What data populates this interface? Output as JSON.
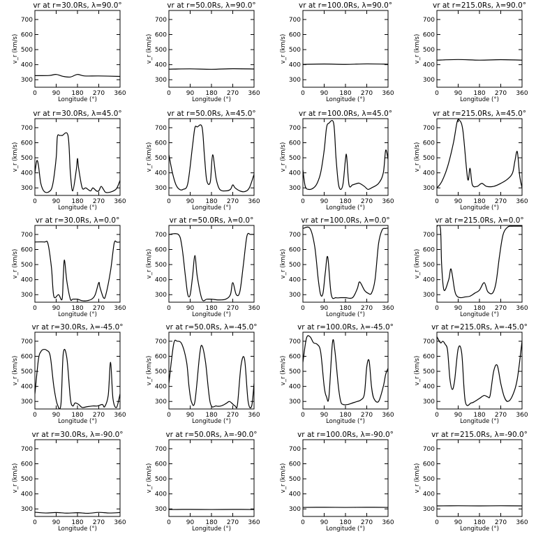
{
  "chart_data": {
    "type": "line",
    "xlabel": "Longitude (°)",
    "ylabel": "v_r (km/s)",
    "xlim": [
      0,
      360
    ],
    "ylim": [
      250,
      760
    ],
    "xticks": [
      "0",
      "90",
      "180",
      "270",
      "360"
    ],
    "yticks": [
      "300",
      "400",
      "500",
      "600",
      "700"
    ],
    "panels": [
      {
        "title": "vr at r=30.0Rs, λ=90.0°",
        "x": [
          0,
          60,
          90,
          120,
          150,
          180,
          210,
          270,
          360
        ],
        "y": [
          327,
          328,
          335,
          322,
          318,
          335,
          325,
          325,
          322
        ]
      },
      {
        "title": "vr at r=50.0Rs, λ=90.0°",
        "x": [
          0,
          90,
          180,
          270,
          360
        ],
        "y": [
          370,
          372,
          369,
          373,
          371
        ]
      },
      {
        "title": "vr at r=100.0Rs, λ=90.0°",
        "x": [
          0,
          90,
          180,
          270,
          360
        ],
        "y": [
          402,
          404,
          402,
          405,
          403
        ]
      },
      {
        "title": "vr at r=215.0Rs, λ=90.0°",
        "x": [
          0,
          90,
          180,
          270,
          360
        ],
        "y": [
          430,
          434,
          430,
          433,
          430
        ]
      },
      {
        "title": "vr at r=30.0Rs, λ=45.0°",
        "x": [
          0,
          8,
          15,
          25,
          40,
          60,
          75,
          90,
          95,
          105,
          115,
          140,
          150,
          160,
          175,
          180,
          185,
          200,
          215,
          235,
          245,
          260,
          270,
          280,
          290,
          300,
          325,
          345,
          360
        ],
        "y": [
          400,
          480,
          450,
          330,
          275,
          275,
          320,
          500,
          640,
          648,
          648,
          648,
          400,
          280,
          420,
          495,
          430,
          300,
          300,
          280,
          300,
          280,
          280,
          310,
          290,
          270,
          275,
          295,
          350
        ]
      },
      {
        "title": "vr at r=50.0Rs, λ=45.0°",
        "x": [
          0,
          15,
          30,
          45,
          60,
          80,
          100,
          110,
          120,
          140,
          150,
          160,
          175,
          185,
          200,
          215,
          240,
          260,
          270,
          280,
          300,
          320,
          340,
          360
        ],
        "y": [
          520,
          400,
          320,
          290,
          290,
          330,
          580,
          700,
          705,
          705,
          520,
          350,
          340,
          520,
          360,
          290,
          280,
          290,
          320,
          300,
          280,
          275,
          300,
          390
        ]
      },
      {
        "title": "vr at r=100.0Rs, λ=45.0°",
        "x": [
          0,
          10,
          25,
          45,
          60,
          75,
          90,
          100,
          110,
          130,
          140,
          150,
          160,
          170,
          180,
          185,
          195,
          210,
          230,
          240,
          260,
          275,
          290,
          320,
          340,
          350,
          360
        ],
        "y": [
          420,
          310,
          290,
          300,
          330,
          400,
          550,
          700,
          730,
          730,
          500,
          330,
          290,
          330,
          490,
          510,
          320,
          320,
          330,
          330,
          310,
          290,
          300,
          330,
          400,
          550,
          490
        ]
      },
      {
        "title": "vr at r=215.0Rs, λ=45.0°",
        "x": [
          0,
          20,
          45,
          70,
          85,
          95,
          110,
          130,
          140,
          150,
          170,
          190,
          210,
          240,
          270,
          300,
          320,
          330,
          340,
          350,
          360
        ],
        "y": [
          300,
          340,
          440,
          600,
          735,
          750,
          680,
          360,
          430,
          320,
          310,
          330,
          310,
          310,
          330,
          360,
          400,
          480,
          540,
          380,
          300
        ]
      },
      {
        "title": "vr at r=30.0Rs, λ=0.0°",
        "x": [
          0,
          40,
          55,
          70,
          80,
          100,
          115,
          120,
          125,
          135,
          150,
          160,
          180,
          200,
          220,
          240,
          255,
          270,
          275,
          290,
          300,
          320,
          335,
          345,
          350,
          360
        ],
        "y": [
          650,
          650,
          640,
          480,
          290,
          300,
          270,
          420,
          530,
          390,
          270,
          270,
          270,
          260,
          260,
          270,
          300,
          380,
          350,
          280,
          300,
          460,
          640,
          650,
          648,
          650
        ]
      },
      {
        "title": "vr at r=50.0Rs, λ=0.0°",
        "x": [
          0,
          40,
          55,
          70,
          80,
          90,
          100,
          110,
          120,
          140,
          160,
          180,
          210,
          240,
          260,
          270,
          285,
          300,
          315,
          330,
          345,
          360
        ],
        "y": [
          700,
          700,
          620,
          420,
          300,
          300,
          420,
          560,
          420,
          270,
          270,
          270,
          265,
          270,
          300,
          380,
          300,
          320,
          500,
          690,
          700,
          700
        ]
      },
      {
        "title": "vr at r=100.0Rs, λ=0.0°",
        "x": [
          0,
          30,
          50,
          65,
          75,
          85,
          95,
          105,
          120,
          140,
          160,
          180,
          210,
          230,
          240,
          260,
          275,
          290,
          305,
          320,
          335,
          350,
          360
        ],
        "y": [
          740,
          740,
          620,
          400,
          300,
          310,
          450,
          550,
          300,
          280,
          280,
          280,
          280,
          340,
          385,
          330,
          310,
          310,
          400,
          640,
          730,
          740,
          742
        ]
      },
      {
        "title": "vr at r=215.0Rs, λ=0.0°",
        "x": [
          0,
          15,
          20,
          30,
          50,
          60,
          75,
          85,
          100,
          120,
          140,
          160,
          180,
          200,
          215,
          235,
          250,
          265,
          280,
          300,
          320,
          340,
          360
        ],
        "y": [
          755,
          740,
          500,
          330,
          400,
          470,
          330,
          290,
          280,
          285,
          290,
          310,
          330,
          380,
          320,
          310,
          380,
          560,
          700,
          750,
          755,
          755,
          755
        ]
      },
      {
        "title": "vr at r=30.0Rs, λ=-45.0°",
        "x": [
          0,
          15,
          25,
          35,
          50,
          65,
          80,
          95,
          110,
          120,
          135,
          150,
          160,
          170,
          185,
          200,
          220,
          245,
          265,
          285,
          295,
          310,
          320,
          330,
          345,
          360
        ],
        "y": [
          350,
          580,
          630,
          645,
          640,
          600,
          400,
          280,
          280,
          620,
          590,
          320,
          270,
          290,
          280,
          260,
          265,
          270,
          270,
          280,
          265,
          340,
          560,
          320,
          260,
          350
        ]
      },
      {
        "title": "vr at r=50.0Rs, λ=-45.0°",
        "x": [
          0,
          20,
          35,
          55,
          75,
          85,
          95,
          110,
          130,
          140,
          155,
          175,
          200,
          220,
          240,
          255,
          265,
          280,
          290,
          305,
          320,
          335,
          350,
          360
        ],
        "y": [
          420,
          680,
          700,
          680,
          560,
          400,
          300,
          300,
          610,
          670,
          560,
          290,
          270,
          270,
          285,
          300,
          290,
          270,
          280,
          540,
          580,
          300,
          270,
          420
        ]
      },
      {
        "title": "vr at r=100.0Rs, λ=-45.0°",
        "x": [
          0,
          15,
          30,
          45,
          60,
          75,
          90,
          100,
          110,
          125,
          135,
          150,
          160,
          170,
          190,
          210,
          230,
          245,
          260,
          270,
          280,
          290,
          300,
          320,
          340,
          350,
          360
        ],
        "y": [
          560,
          720,
          730,
          690,
          680,
          630,
          400,
          330,
          330,
          690,
          640,
          400,
          300,
          280,
          280,
          290,
          300,
          310,
          350,
          530,
          570,
          400,
          320,
          300,
          400,
          480,
          520
        ]
      },
      {
        "title": "vr at r=215.0Rs, λ=-45.0°",
        "x": [
          0,
          15,
          25,
          35,
          45,
          55,
          65,
          75,
          90,
          105,
          120,
          145,
          160,
          180,
          200,
          215,
          225,
          240,
          255,
          270,
          285,
          300,
          320,
          340,
          360
        ],
        "y": [
          730,
          690,
          700,
          680,
          640,
          450,
          380,
          440,
          650,
          620,
          300,
          290,
          300,
          320,
          340,
          330,
          340,
          500,
          540,
          420,
          330,
          300,
          340,
          450,
          700
        ]
      },
      {
        "title": "vr at r=30.0Rs, λ=-90.0°",
        "x": [
          0,
          45,
          90,
          135,
          180,
          225,
          270,
          315,
          360
        ],
        "y": [
          278,
          273,
          276,
          272,
          275,
          271,
          277,
          273,
          276
        ]
      },
      {
        "title": "vr at r=50.0Rs, λ=-90.0°",
        "x": [
          0,
          90,
          180,
          270,
          360
        ],
        "y": [
          296,
          297,
          296,
          297,
          296
        ]
      },
      {
        "title": "vr at r=100.0Rs, λ=-90.0°",
        "x": [
          0,
          90,
          180,
          270,
          360
        ],
        "y": [
          310,
          311,
          310,
          311,
          310
        ]
      },
      {
        "title": "vr at r=215.0Rs, λ=-90.0°",
        "x": [
          0,
          90,
          180,
          270,
          360
        ],
        "y": [
          320,
          321,
          320,
          321,
          320
        ]
      }
    ]
  }
}
